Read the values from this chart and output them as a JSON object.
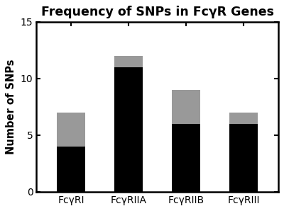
{
  "categories": [
    "FcγRI",
    "FcγRIIA",
    "FcγRIIB",
    "FcγRIII"
  ],
  "black_values": [
    4,
    11,
    6,
    6
  ],
  "gray_values": [
    3,
    1,
    3,
    1
  ],
  "bar_color_black": "#000000",
  "bar_color_gray": "#999999",
  "title": "Frequency of SNPs in FcγR Genes",
  "ylabel": "Number of SNPs",
  "ylim": [
    0,
    15
  ],
  "yticks": [
    0,
    5,
    10,
    15
  ],
  "background_color": "#ffffff",
  "title_fontsize": 12.5,
  "label_fontsize": 10.5,
  "tick_fontsize": 10,
  "bar_width": 0.5,
  "spine_linewidth": 1.8
}
